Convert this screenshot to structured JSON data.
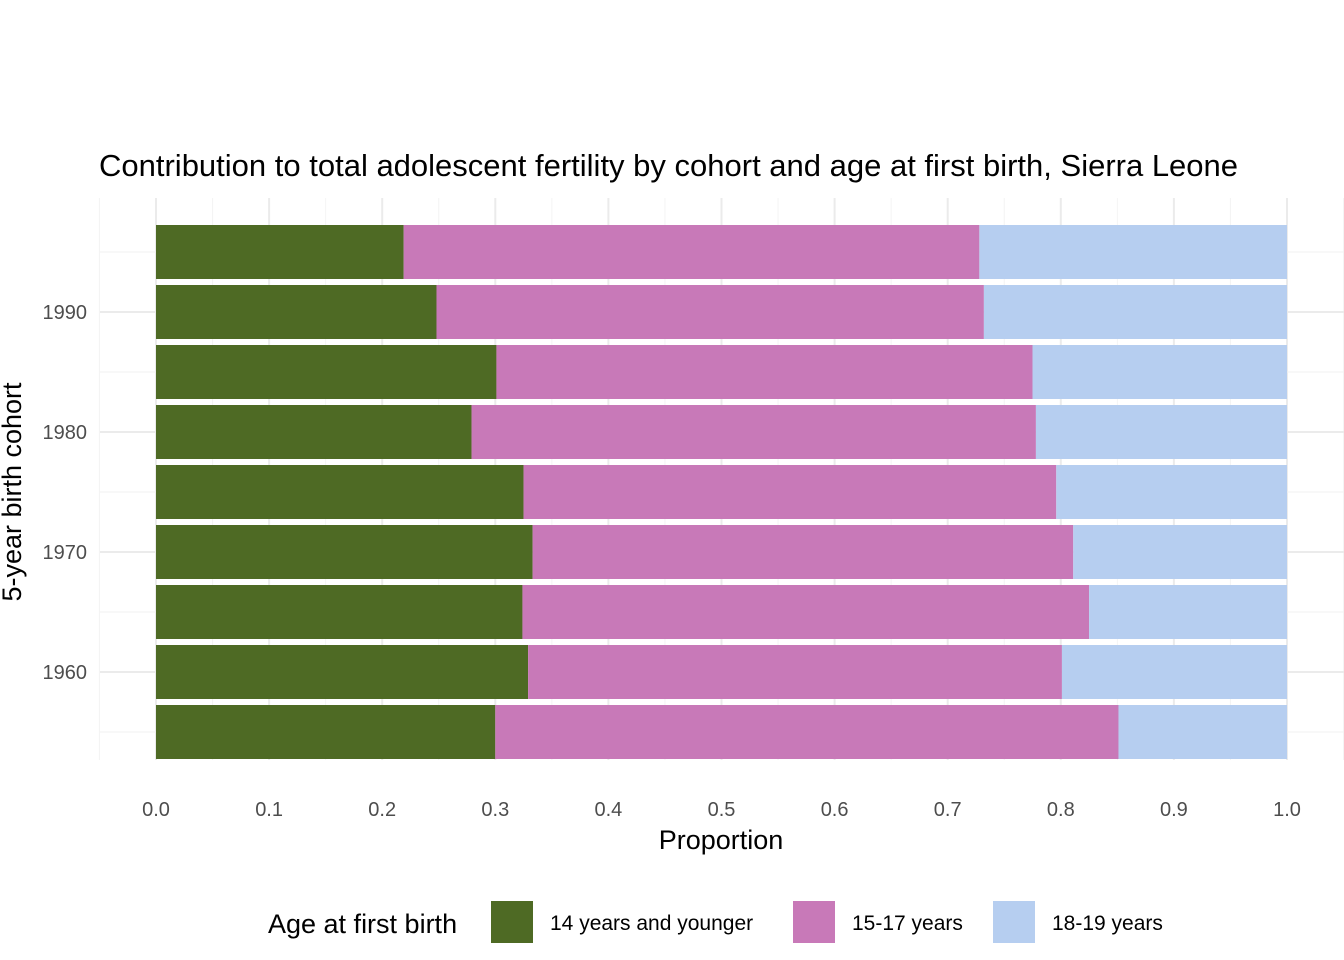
{
  "chart_data": {
    "type": "bar",
    "orientation": "horizontal",
    "stacked": true,
    "title": "Contribution to total adolescent fertility by cohort and age at first birth,  Sierra Leone",
    "xlabel": "Proportion",
    "ylabel": "5-year birth cohort",
    "xlim": [
      0,
      1
    ],
    "x_ticks": [
      "0.0",
      "0.1",
      "0.2",
      "0.3",
      "0.4",
      "0.5",
      "0.6",
      "0.7",
      "0.8",
      "0.9",
      "1.0"
    ],
    "y_ticks": [
      "1960",
      "1970",
      "1980",
      "1990"
    ],
    "grid": true,
    "categories": [
      1955,
      1960,
      1965,
      1970,
      1975,
      1980,
      1985,
      1990,
      1995
    ],
    "series": [
      {
        "name": "14 years and younger",
        "color": "#4E6A24",
        "values": [
          0.3,
          0.329,
          0.324,
          0.333,
          0.325,
          0.279,
          0.301,
          0.248,
          0.219
        ]
      },
      {
        "name": "15-17 years",
        "color": "#C879B8",
        "values": [
          0.551,
          0.472,
          0.501,
          0.478,
          0.471,
          0.499,
          0.474,
          0.484,
          0.509
        ]
      },
      {
        "name": "18-19 years",
        "color": "#B6CEF0",
        "values": [
          0.149,
          0.199,
          0.175,
          0.189,
          0.204,
          0.222,
          0.225,
          0.268,
          0.272
        ]
      }
    ],
    "legend": {
      "title": "Age at first birth",
      "position": "bottom"
    }
  }
}
